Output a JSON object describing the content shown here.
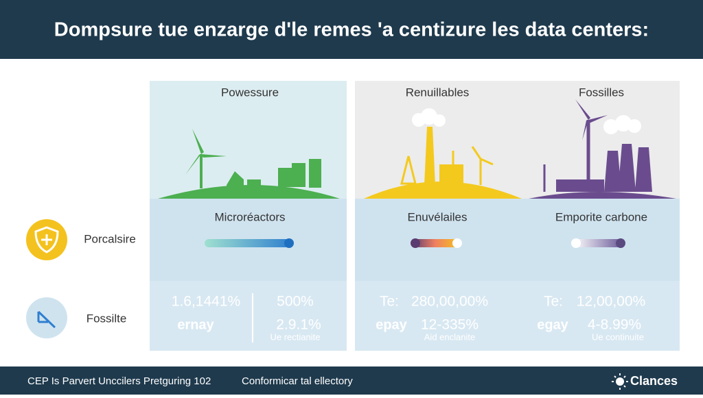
{
  "header": {
    "title": "Dompsure tue enzarge d'le remes 'a centizure les data centers:"
  },
  "row_labels": [
    "Porcalsire",
    "Fossilte"
  ],
  "panels": [
    {
      "title": "Powessure",
      "subtitle": "Microréactors",
      "stats": {
        "top_left": "1.6,1441%",
        "top_right": "500%",
        "bottom_left": "ernay",
        "bottom_right": "2.9.1%",
        "note": "Ue rectianite"
      }
    },
    {
      "title": "Renuillables",
      "subtitle": "Enuvélailes",
      "stats": {
        "top_left": "Te:",
        "top_right": "280,00,00%",
        "bottom_left": "epay",
        "bottom_right": "12-335%",
        "note": "Aid enclanite"
      }
    },
    {
      "title": "Fossilles",
      "subtitle": "Emporite carbone",
      "stats": {
        "top_left": "Te:",
        "top_right": "12,00,00%",
        "bottom_left": "egay",
        "bottom_right": "4-8.99%",
        "note": "Ue continuite"
      }
    }
  ],
  "footer": {
    "left": "CEP Is Parvert Unccilers Pretguring 102",
    "middle": "Conformicar tal ellectory",
    "brand": "Clances"
  }
}
